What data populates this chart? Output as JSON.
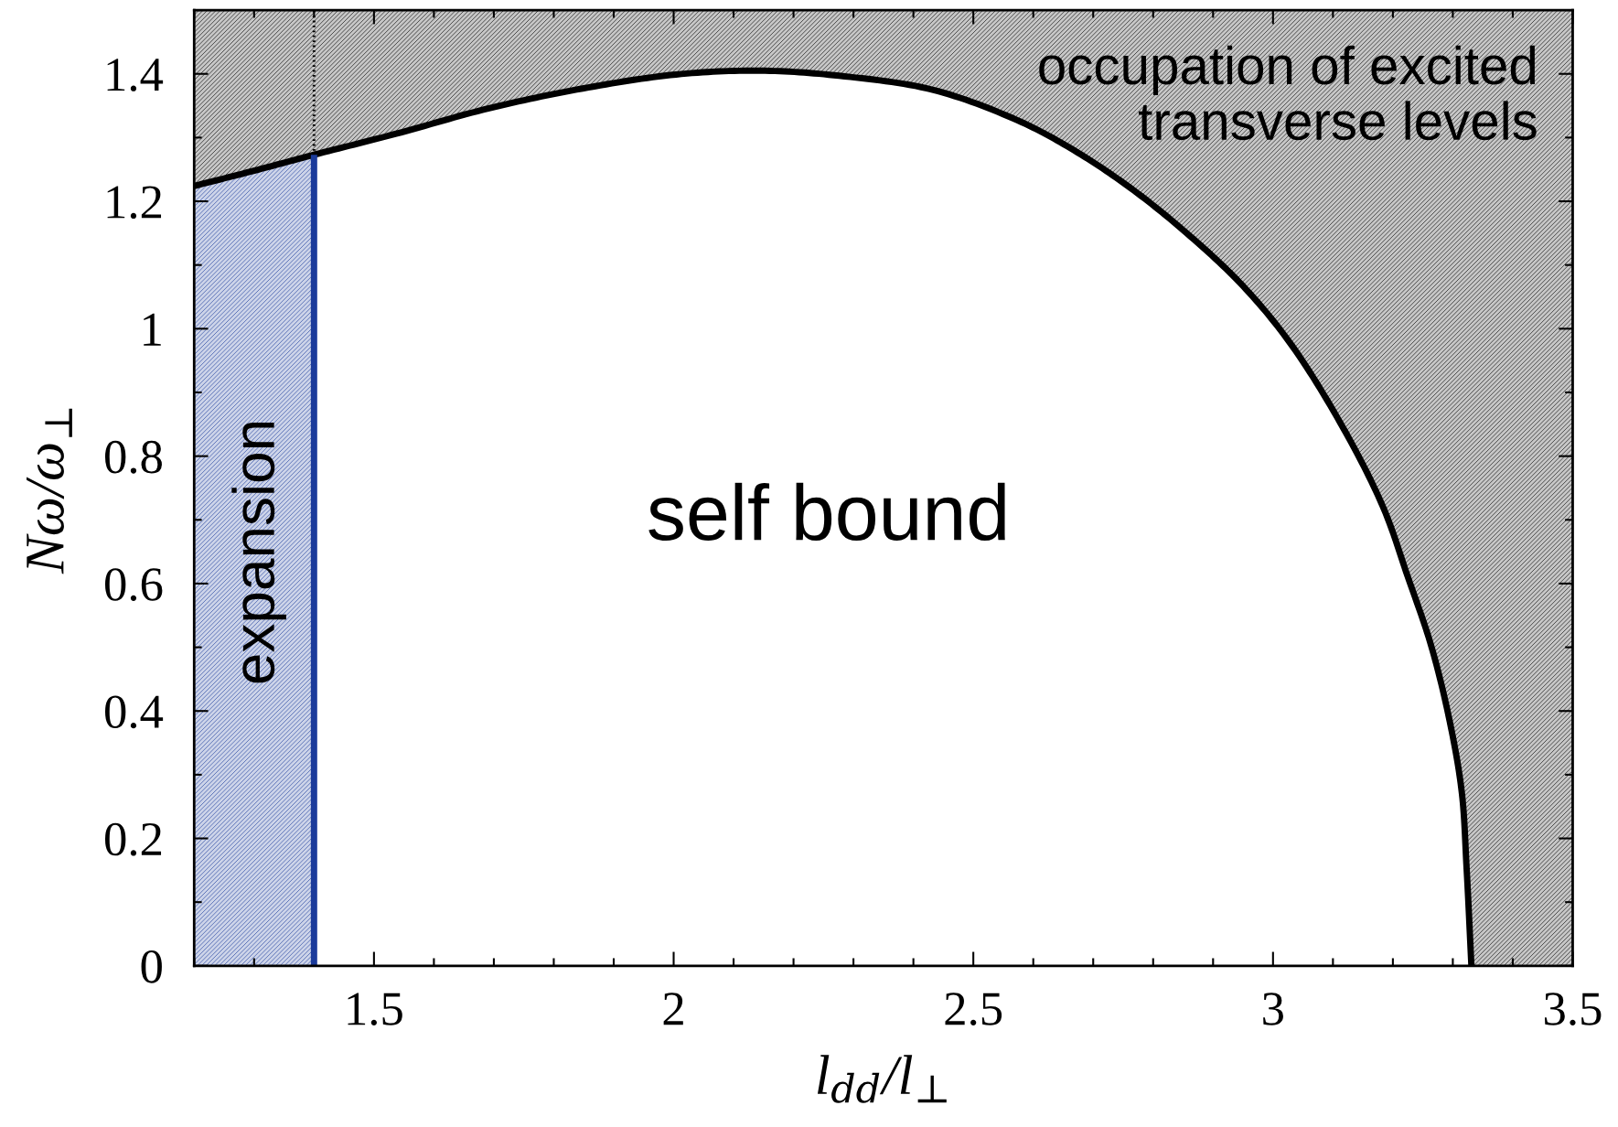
{
  "chart_data": {
    "type": "line",
    "xlabel": "l$_{dd}$/l$_{⊥}$",
    "ylabel": "Nω/ω$_{⊥}$",
    "xlim": [
      1.2,
      3.5
    ],
    "ylim": [
      0,
      1.5
    ],
    "xticks": [
      1.5,
      2,
      2.5,
      3,
      3.5
    ],
    "yticks": [
      0,
      0.2,
      0.4,
      0.6,
      0.8,
      1,
      1.2,
      1.4
    ],
    "line_style": "solid",
    "series": [
      {
        "type": "area",
        "color": "#1b3b9b",
        "x": [
          1.2,
          1.3,
          1.4
        ],
        "values": [
          1.224,
          1.248,
          1.273
        ]
      },
      {
        "color": "#000000",
        "x": [
          1.2,
          1.3,
          1.4,
          1.537,
          1.692,
          1.848,
          2.004,
          2.144,
          2.276,
          2.432,
          2.574,
          2.668,
          2.762,
          2.856,
          2.95,
          3.032,
          3.122,
          3.185,
          3.224,
          3.264,
          3.295,
          3.315,
          3.323,
          3.331,
          3.5
        ],
        "values": [
          1.224,
          1.248,
          1.273,
          1.306,
          1.346,
          1.377,
          1.399,
          1.405,
          1.397,
          1.375,
          1.327,
          1.28,
          1.221,
          1.15,
          1.067,
          0.973,
          0.836,
          0.717,
          0.613,
          0.502,
          0.383,
          0.272,
          0.153,
          0,
          null
        ],
        "lower": [
          1.224,
          1.248,
          1.273,
          1.306,
          1.346,
          1.377,
          1.399,
          1.405,
          1.397,
          1.375,
          1.327,
          1.28,
          1.221,
          1.15,
          1.067,
          0.973,
          0.836,
          0.717,
          0.613,
          0.502,
          0.383,
          0.272,
          0.153,
          0,
          0
        ],
        "upper": [
          1.5,
          1.5,
          1.5,
          1.5,
          1.5,
          1.5,
          1.5,
          1.5,
          1.5,
          1.5,
          1.5,
          1.5,
          1.5,
          1.5,
          1.5,
          1.5,
          1.5,
          1.5,
          1.5,
          1.5,
          1.5,
          1.5,
          1.5,
          1.5,
          1.5
        ]
      },
      {
        "color": "#1b3b9b",
        "x": [
          1.4,
          1.4
        ],
        "values": [
          0,
          1.273
        ]
      }
    ],
    "ref_lines": [
      {
        "axis": "x",
        "value": 1.4,
        "color": "#000000",
        "line_style": "dotted"
      }
    ],
    "annotations": [
      "occupation of excited\ntransverse levels",
      "self bound",
      "expansion"
    ]
  }
}
